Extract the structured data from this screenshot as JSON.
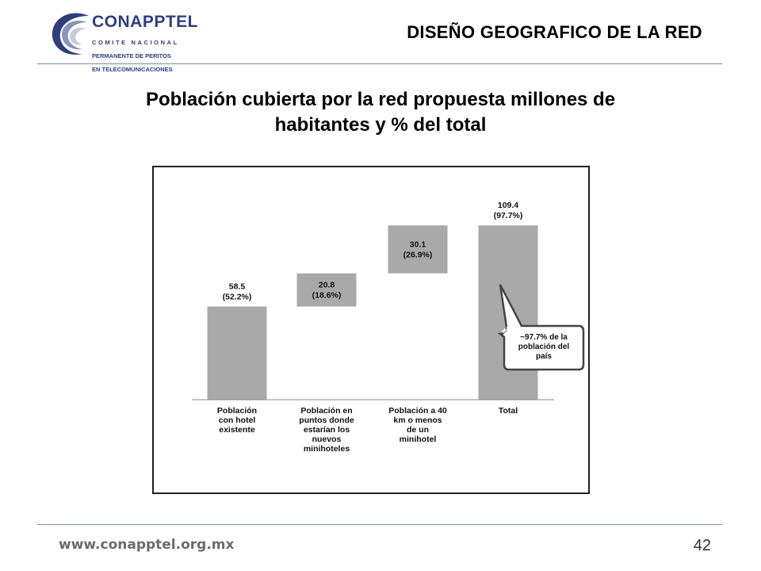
{
  "header": {
    "logo": {
      "name": "CONAPPTEL",
      "subtitle_lines": [
        "COMITE NACIONAL",
        "PERMANENTE DE PERITOS",
        "EN TELECOMUNICACIONES"
      ]
    },
    "title": "DISEÑO GEOGRAFICO DE LA RED"
  },
  "slide": {
    "title_lines": [
      "Población cubierta por la red propuesta millones de",
      "habitantes y % del total"
    ]
  },
  "chart_data": {
    "type": "bar",
    "subtype": "waterfall",
    "categories": [
      [
        "Población",
        "con hotel",
        "existente"
      ],
      [
        "Población en",
        "puntos donde",
        "estarían los",
        "nuevos",
        "minihoteles"
      ],
      [
        "Población a 40",
        "km o menos",
        "de un",
        "minihotel"
      ],
      [
        "Total"
      ]
    ],
    "values": [
      58.5,
      20.8,
      30.1,
      109.4
    ],
    "value_labels": [
      [
        "58.5",
        "(52.2%)"
      ],
      [
        "20.8",
        "(18.6%)"
      ],
      [
        "30.1",
        "(26.9%)"
      ],
      [
        "109.4",
        "(97.7%)"
      ]
    ],
    "callout": [
      "~97.7% de la",
      "población del",
      "país"
    ],
    "bar_color": "#a9a9a9",
    "ylim": [
      0,
      115
    ],
    "grid": false,
    "legend": "none"
  },
  "footer": {
    "url": "www.conapptel.org.mx",
    "page": "42"
  }
}
